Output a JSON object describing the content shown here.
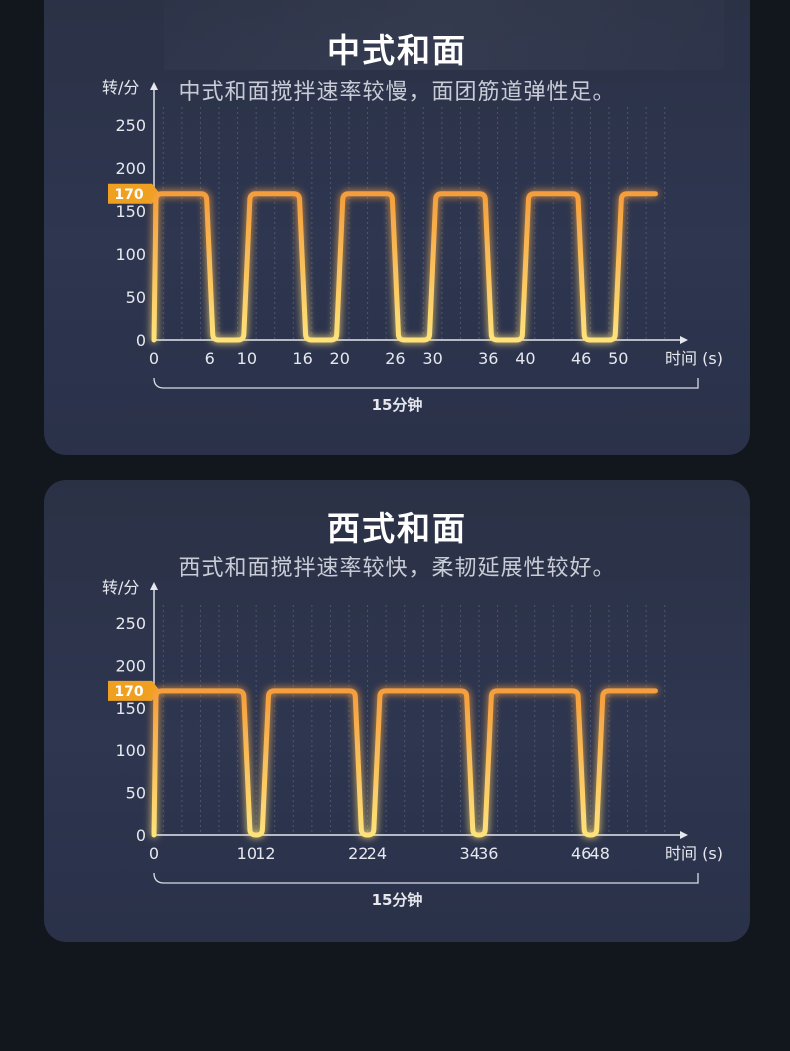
{
  "chart_data": [
    {
      "type": "line",
      "title": "中式和面",
      "subtitle": "中式和面搅拌速率较慢，面团筋道弹性足。",
      "ylabel": "转/分",
      "xlabel": "时间 (s)",
      "ylim": [
        0,
        250
      ],
      "y_ticks": [
        "0",
        "50",
        "100",
        "150",
        "200",
        "250"
      ],
      "x_ticks": [
        "0",
        "6",
        "10",
        "16",
        "20",
        "26",
        "30",
        "36",
        "40",
        "46",
        "50"
      ],
      "highlight_value": "170",
      "duration_label": "15分钟",
      "grid": true,
      "colors": {
        "line_top": "#f59e3c",
        "line_bottom": "#ffe27a",
        "marker": "#f0a020"
      },
      "series": [
        {
          "x": [
            0,
            6,
            10,
            16,
            20,
            26,
            30,
            36,
            40,
            46,
            50,
            54
          ],
          "segments": [
            {
              "from": 0,
              "to": 6,
              "value": 170
            },
            {
              "from": 6,
              "to": 10,
              "value": 0
            },
            {
              "from": 10,
              "to": 16,
              "value": 170
            },
            {
              "from": 16,
              "to": 20,
              "value": 0
            },
            {
              "from": 20,
              "to": 26,
              "value": 170
            },
            {
              "from": 26,
              "to": 30,
              "value": 0
            },
            {
              "from": 30,
              "to": 36,
              "value": 170
            },
            {
              "from": 36,
              "to": 40,
              "value": 0
            },
            {
              "from": 40,
              "to": 46,
              "value": 170
            },
            {
              "from": 46,
              "to": 50,
              "value": 0
            },
            {
              "from": 50,
              "to": 54,
              "value": 170
            }
          ]
        }
      ]
    },
    {
      "type": "line",
      "title": "西式和面",
      "subtitle": "西式和面搅拌速率较快，柔韧延展性较好。",
      "ylabel": "转/分",
      "xlabel": "时间 (s)",
      "ylim": [
        0,
        250
      ],
      "y_ticks": [
        "0",
        "50",
        "100",
        "150",
        "200",
        "250"
      ],
      "x_ticks": [
        "0",
        "10",
        "12",
        "22",
        "24",
        "34",
        "36",
        "46",
        "48"
      ],
      "highlight_value": "170",
      "duration_label": "15分钟",
      "grid": true,
      "colors": {
        "line_top": "#f59e3c",
        "line_bottom": "#ffe27a",
        "marker": "#f0a020"
      },
      "series": [
        {
          "x": [
            0,
            10,
            12,
            22,
            24,
            34,
            36,
            46,
            48,
            54
          ],
          "segments": [
            {
              "from": 0,
              "to": 10,
              "value": 170
            },
            {
              "from": 10,
              "to": 12,
              "value": 0
            },
            {
              "from": 12,
              "to": 22,
              "value": 170
            },
            {
              "from": 22,
              "to": 24,
              "value": 0
            },
            {
              "from": 24,
              "to": 34,
              "value": 170
            },
            {
              "from": 34,
              "to": 36,
              "value": 0
            },
            {
              "from": 36,
              "to": 46,
              "value": 170
            },
            {
              "from": 46,
              "to": 48,
              "value": 0
            },
            {
              "from": 48,
              "to": 54,
              "value": 170
            }
          ]
        }
      ]
    }
  ]
}
